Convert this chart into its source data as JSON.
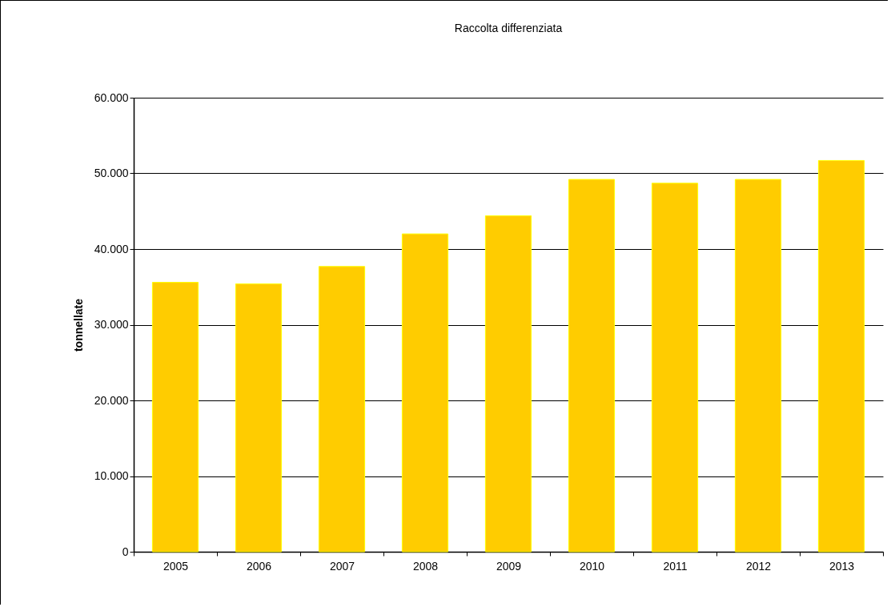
{
  "chart_data": {
    "type": "bar",
    "title": "Raccolta differenziata",
    "ylabel": "tonnellate",
    "categories": [
      "2005",
      "2006",
      "2007",
      "2008",
      "2009",
      "2010",
      "2011",
      "2012",
      "2013"
    ],
    "values": [
      35600,
      35400,
      37700,
      42000,
      44400,
      49200,
      48700,
      49200,
      51700
    ],
    "color": "#ffcc00",
    "ylim": [
      0,
      60000
    ],
    "yticks": [
      0,
      {
        "value": 10000,
        "label": "10.000"
      },
      {
        "value": 20000,
        "label": "20.000"
      },
      {
        "value": 30000,
        "label": "30.000"
      },
      {
        "value": 40000,
        "label": "40.000"
      },
      {
        "value": 50000,
        "label": "50.000"
      },
      {
        "value": 60000,
        "label": "60.000"
      }
    ],
    "grid": "y"
  }
}
